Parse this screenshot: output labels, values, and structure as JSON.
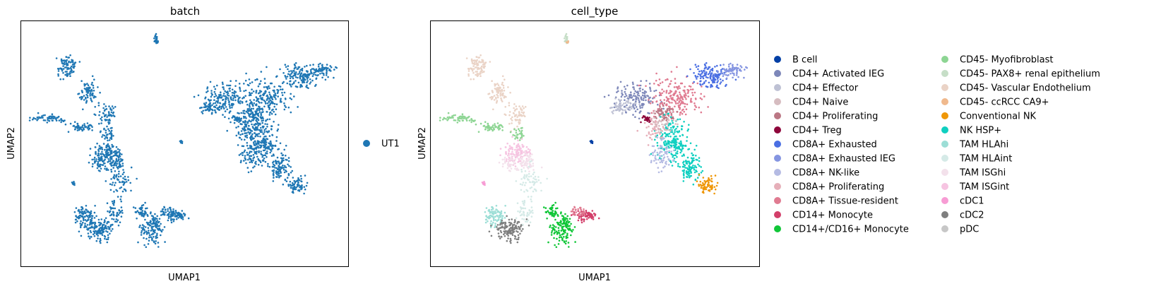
{
  "chart_data": [
    {
      "type": "scatter",
      "title": "batch",
      "xlabel": "UMAP1",
      "ylabel": "UMAP2",
      "grid": false,
      "ticks": "hidden",
      "legend_position": "right",
      "legend": [
        {
          "label": "UT1",
          "color": "#1f77b4"
        }
      ]
    },
    {
      "type": "scatter",
      "title": "cell_type",
      "xlabel": "UMAP1",
      "ylabel": "UMAP2",
      "grid": false,
      "ticks": "hidden",
      "legend_position": "right",
      "legend_columns": 2,
      "legend": [
        {
          "label": "B cell",
          "color": "#023fa5"
        },
        {
          "label": "CD4+ Activated IEG",
          "color": "#7d87b9"
        },
        {
          "label": "CD4+ Effector",
          "color": "#bec1d4"
        },
        {
          "label": "CD4+ Naive",
          "color": "#d6bcc0"
        },
        {
          "label": "CD4+ Proliferating",
          "color": "#bb7784"
        },
        {
          "label": "CD4+ Treg",
          "color": "#8e063b"
        },
        {
          "label": "CD8A+ Exhausted",
          "color": "#4a6fe3"
        },
        {
          "label": "CD8A+ Exhausted IEG",
          "color": "#8595e1"
        },
        {
          "label": "CD8A+ NK-like",
          "color": "#b5bbe3"
        },
        {
          "label": "CD8A+ Proliferating",
          "color": "#e6afb9"
        },
        {
          "label": "CD8A+ Tissue-resident",
          "color": "#e07b91"
        },
        {
          "label": "CD14+ Monocyte",
          "color": "#d33f6a"
        },
        {
          "label": "CD14+/CD16+ Monocyte",
          "color": "#11c638"
        },
        {
          "label": "CD45- Myofibroblast",
          "color": "#8dd593"
        },
        {
          "label": "CD45- PAX8+ renal epithelium",
          "color": "#c6dec7"
        },
        {
          "label": "CD45- Vascular Endothelium",
          "color": "#ead3c6"
        },
        {
          "label": "CD45- ccRCC CA9+",
          "color": "#f0b98d"
        },
        {
          "label": "Conventional NK",
          "color": "#ef9708"
        },
        {
          "label": "NK HSP+",
          "color": "#0fcfc0"
        },
        {
          "label": "TAM HLAhi",
          "color": "#9cded6"
        },
        {
          "label": "TAM HLAint",
          "color": "#d5eae7"
        },
        {
          "label": "TAM ISGhi",
          "color": "#f3e1eb"
        },
        {
          "label": "TAM ISGint",
          "color": "#f6c4e1"
        },
        {
          "label": "cDC1",
          "color": "#f79cd4"
        },
        {
          "label": "cDC2",
          "color": "#7f7f7f"
        },
        {
          "label": "pDC",
          "color": "#c7c7c7"
        }
      ]
    }
  ]
}
